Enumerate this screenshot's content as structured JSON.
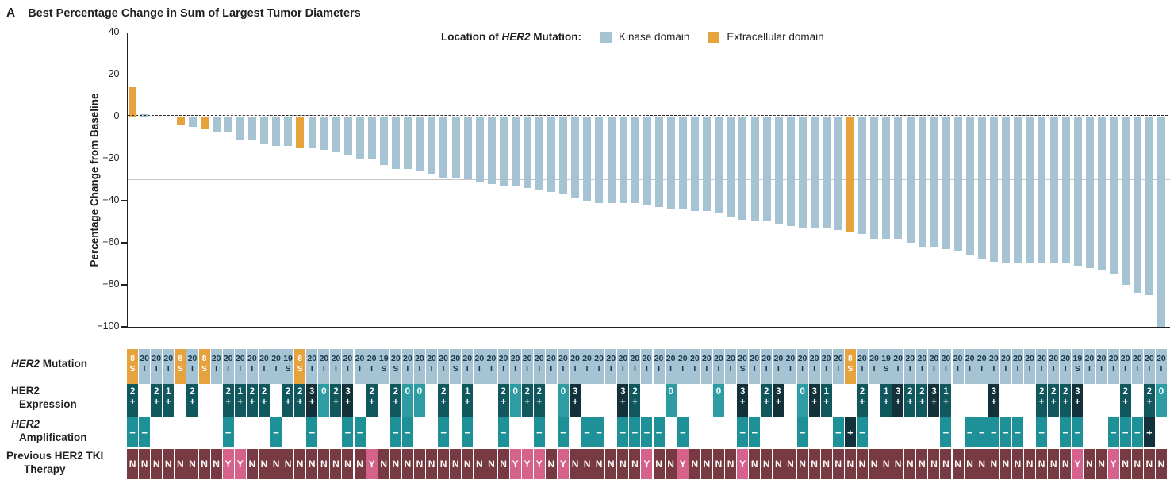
{
  "title": {
    "panel": "A",
    "text": "Best Percentage Change in Sum of Largest Tumor Diameters"
  },
  "legend": {
    "label_prefix": "Location of",
    "gene": "HER2",
    "label_suffix": "Mutation:",
    "items": [
      {
        "label": "Kinase domain",
        "color": "#a6c3d3"
      },
      {
        "label": "Extracellular domain",
        "color": "#e6a23c"
      }
    ]
  },
  "row_labels": {
    "mutation": {
      "gene": "HER2",
      "rest": "Mutation"
    },
    "expression": {
      "line1": "HER2",
      "line2": "Expression"
    },
    "amplification": {
      "line1": "HER2",
      "line2": "Amplification"
    },
    "tki": {
      "line1": "Previous HER2 TKI",
      "line2": "Therapy"
    }
  },
  "chart_data": {
    "type": "bar",
    "subtype": "waterfall",
    "title": "Best Percentage Change in Sum of Largest Tumor Diameters",
    "ylabel": "Percentage Change from Baseline",
    "ylim": [
      -100,
      40
    ],
    "yticks": [
      {
        "v": 40,
        "label": "40"
      },
      {
        "v": 20,
        "label": "20"
      },
      {
        "v": 0,
        "label": "0"
      },
      {
        "v": -20,
        "label": "−20"
      },
      {
        "v": -40,
        "label": "−40"
      },
      {
        "v": -60,
        "label": "−60"
      },
      {
        "v": -80,
        "label": "−80"
      },
      {
        "v": -100,
        "label": "−100"
      }
    ],
    "reference_lines": [
      20,
      -30
    ],
    "baseline": 0,
    "grid": "horizontal-reference-only",
    "legend_position": "top-center",
    "n_patients": 87,
    "series_colors": {
      "kinase": "#a6c3d3",
      "extracellular": "#e6a23c"
    },
    "annotation_colors": {
      "mutation_text_on_blue": "#17394c",
      "expression_3plus": "#12313a",
      "expression_1or2plus": "#11585e",
      "expression_zero": "#2e9ca3",
      "amp_minus": "#1e9097",
      "amp_plus": "#12313a",
      "tki_no": "#773a42",
      "tki_yes": "#d4628a"
    },
    "patient_fields": [
      "pct_change",
      "mutation_domain",
      "mutation_exon",
      "mutation_type",
      "her2_expression",
      "her2_amplification",
      "previous_her2_tki"
    ],
    "patients": [
      [
        14,
        "E",
        "8",
        "S",
        "2+",
        "-",
        "N"
      ],
      [
        1,
        "K",
        "20",
        "I",
        null,
        "-",
        "N"
      ],
      [
        0,
        "K",
        "20",
        "I",
        "2+",
        null,
        "N"
      ],
      [
        0,
        "K",
        "20",
        "I",
        "1+",
        null,
        "N"
      ],
      [
        -4,
        "E",
        "8",
        "S",
        null,
        null,
        "N"
      ],
      [
        -5,
        "K",
        "20",
        "I",
        "2+",
        null,
        "N"
      ],
      [
        -6,
        "E",
        "8",
        "S",
        null,
        null,
        "N"
      ],
      [
        -7,
        "K",
        "20",
        "I",
        null,
        null,
        "N"
      ],
      [
        -7,
        "K",
        "20",
        "I",
        "2+",
        "-",
        "Y"
      ],
      [
        -11,
        "K",
        "20",
        "I",
        "1+",
        null,
        "Y"
      ],
      [
        -11,
        "K",
        "20",
        "I",
        "2+",
        null,
        "N"
      ],
      [
        -13,
        "K",
        "20",
        "I",
        "2+",
        null,
        "N"
      ],
      [
        -14,
        "K",
        "20",
        "I",
        null,
        "-",
        "N"
      ],
      [
        -14,
        "K",
        "19",
        "S",
        "2+",
        null,
        "N"
      ],
      [
        -15,
        "E",
        "8",
        "S",
        "2+",
        null,
        "N"
      ],
      [
        -15,
        "K",
        "20",
        "I",
        "3+",
        "-",
        "N"
      ],
      [
        -16,
        "K",
        "20",
        "I",
        "0",
        null,
        "N"
      ],
      [
        -17,
        "K",
        "20",
        "I",
        "2+",
        null,
        "N"
      ],
      [
        -18,
        "K",
        "20",
        "I",
        "3+",
        "-",
        "N"
      ],
      [
        -20,
        "K",
        "20",
        "I",
        null,
        "-",
        "N"
      ],
      [
        -20,
        "K",
        "20",
        "I",
        "2+",
        null,
        "Y"
      ],
      [
        -23,
        "K",
        "19",
        "S",
        null,
        null,
        "N"
      ],
      [
        -25,
        "K",
        "20",
        "S",
        "2+",
        "-",
        "N"
      ],
      [
        -25,
        "K",
        "20",
        "I",
        "0",
        "-",
        "N"
      ],
      [
        -26,
        "K",
        "20",
        "I",
        "0",
        null,
        "N"
      ],
      [
        -27,
        "K",
        "20",
        "I",
        null,
        null,
        "N"
      ],
      [
        -29,
        "K",
        "20",
        "I",
        "2+",
        "-",
        "N"
      ],
      [
        -29,
        "K",
        "20",
        "S",
        null,
        null,
        "N"
      ],
      [
        -30,
        "K",
        "20",
        "I",
        "1+",
        "-",
        "N"
      ],
      [
        -31,
        "K",
        "20",
        "I",
        null,
        null,
        "N"
      ],
      [
        -32,
        "K",
        "20",
        "I",
        null,
        null,
        "N"
      ],
      [
        -33,
        "K",
        "20",
        "I",
        "2+",
        "-",
        "N"
      ],
      [
        -33,
        "K",
        "20",
        "I",
        "0",
        null,
        "Y"
      ],
      [
        -34,
        "K",
        "20",
        "I",
        "2+",
        null,
        "Y"
      ],
      [
        -35,
        "K",
        "20",
        "I",
        "2+",
        "-",
        "Y"
      ],
      [
        -36,
        "K",
        "20",
        "I",
        null,
        null,
        "N"
      ],
      [
        -37,
        "K",
        "20",
        "I",
        "0",
        "-",
        "Y"
      ],
      [
        -39,
        "K",
        "20",
        "I",
        "3+",
        null,
        "N"
      ],
      [
        -40,
        "K",
        "20",
        "I",
        null,
        "-",
        "N"
      ],
      [
        -41,
        "K",
        "20",
        "I",
        null,
        "-",
        "N"
      ],
      [
        -41,
        "K",
        "20",
        "I",
        null,
        null,
        "N"
      ],
      [
        -41,
        "K",
        "20",
        "I",
        "3+",
        "-",
        "N"
      ],
      [
        -41,
        "K",
        "20",
        "I",
        "2+",
        "-",
        "N"
      ],
      [
        -42,
        "K",
        "20",
        "I",
        null,
        "-",
        "Y"
      ],
      [
        -43,
        "K",
        "20",
        "I",
        null,
        "-",
        "N"
      ],
      [
        -44,
        "K",
        "20",
        "I",
        "0",
        null,
        "N"
      ],
      [
        -44,
        "K",
        "20",
        "I",
        null,
        "-",
        "Y"
      ],
      [
        -45,
        "K",
        "20",
        "I",
        null,
        null,
        "N"
      ],
      [
        -45,
        "K",
        "20",
        "I",
        null,
        null,
        "N"
      ],
      [
        -46,
        "K",
        "20",
        "I",
        "0",
        null,
        "N"
      ],
      [
        -48,
        "K",
        "20",
        "I",
        null,
        null,
        "N"
      ],
      [
        -49,
        "K",
        "20",
        "S",
        "3+",
        "-",
        "Y"
      ],
      [
        -50,
        "K",
        "20",
        "I",
        null,
        "-",
        "N"
      ],
      [
        -50,
        "K",
        "20",
        "I",
        "2+",
        null,
        "N"
      ],
      [
        -51,
        "K",
        "20",
        "I",
        "3+",
        null,
        "N"
      ],
      [
        -52,
        "K",
        "20",
        "I",
        null,
        null,
        "N"
      ],
      [
        -53,
        "K",
        "20",
        "I",
        "0",
        "-",
        "N"
      ],
      [
        -53,
        "K",
        "20",
        "I",
        "3+",
        null,
        "N"
      ],
      [
        -53,
        "K",
        "20",
        "I",
        "1+",
        null,
        "N"
      ],
      [
        -54,
        "K",
        "20",
        "I",
        null,
        "-",
        "N"
      ],
      [
        -55,
        "E",
        "8",
        "S",
        null,
        "+",
        "N"
      ],
      [
        -56,
        "K",
        "20",
        "I",
        "2+",
        "-",
        "N"
      ],
      [
        -58,
        "K",
        "20",
        "I",
        null,
        null,
        "N"
      ],
      [
        -58,
        "K",
        "19",
        "S",
        "1+",
        null,
        "N"
      ],
      [
        -58,
        "K",
        "20",
        "I",
        "3+",
        null,
        "N"
      ],
      [
        -60,
        "K",
        "20",
        "I",
        "2+",
        null,
        "N"
      ],
      [
        -62,
        "K",
        "20",
        "I",
        "2+",
        null,
        "N"
      ],
      [
        -62,
        "K",
        "20",
        "I",
        "3+",
        null,
        "N"
      ],
      [
        -63,
        "K",
        "20",
        "I",
        "1+",
        "-",
        "N"
      ],
      [
        -64,
        "K",
        "20",
        "I",
        null,
        null,
        "N"
      ],
      [
        -66,
        "K",
        "20",
        "I",
        null,
        "-",
        "N"
      ],
      [
        -68,
        "K",
        "20",
        "I",
        null,
        "-",
        "N"
      ],
      [
        -69,
        "K",
        "20",
        "I",
        "3+",
        "-",
        "N"
      ],
      [
        -70,
        "K",
        "20",
        "I",
        null,
        "-",
        "N"
      ],
      [
        -70,
        "K",
        "20",
        "I",
        null,
        "-",
        "N"
      ],
      [
        -70,
        "K",
        "20",
        "I",
        null,
        null,
        "N"
      ],
      [
        -70,
        "K",
        "20",
        "I",
        "2+",
        "-",
        "N"
      ],
      [
        -70,
        "K",
        "20",
        "I",
        "2+",
        null,
        "N"
      ],
      [
        -70,
        "K",
        "20",
        "I",
        "2+",
        "-",
        "N"
      ],
      [
        -71,
        "K",
        "19",
        "S",
        "3+",
        "-",
        "Y"
      ],
      [
        -72,
        "K",
        "20",
        "I",
        null,
        null,
        "N"
      ],
      [
        -73,
        "K",
        "20",
        "I",
        null,
        null,
        "N"
      ],
      [
        -75,
        "K",
        "20",
        "I",
        null,
        "-",
        "Y"
      ],
      [
        -80,
        "K",
        "20",
        "I",
        "2+",
        "-",
        "N"
      ],
      [
        -84,
        "K",
        "20",
        "I",
        null,
        "-",
        "N"
      ],
      [
        -85,
        "K",
        "20",
        "I",
        "2+",
        "+",
        "N"
      ],
      [
        -100,
        "K",
        "20",
        "I",
        "0",
        null,
        "N"
      ]
    ]
  }
}
